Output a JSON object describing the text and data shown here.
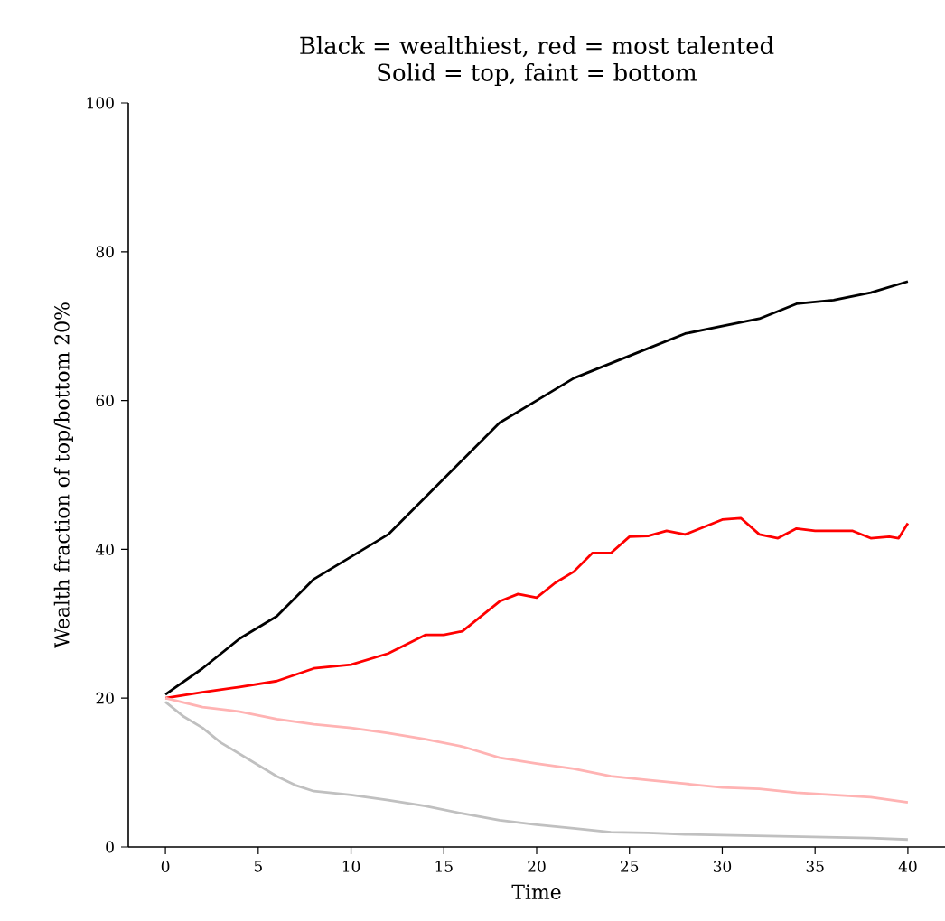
{
  "chart_data": {
    "type": "line",
    "title": "Black = wealthiest, red = most talented\nSolid = top, faint = bottom",
    "xlabel": "Time",
    "ylabel": "Wealth fraction of top/bottom 20%",
    "xlim": [
      -2,
      42
    ],
    "ylim": [
      0,
      100
    ],
    "xticks": [
      0,
      5,
      10,
      15,
      20,
      25,
      30,
      35,
      40
    ],
    "yticks": [
      0,
      20,
      40,
      60,
      80,
      100
    ],
    "grid": false,
    "marker": "none",
    "line_style": "solid",
    "series": [
      {
        "color": "#000000",
        "x": [
          0,
          2,
          4,
          6,
          8,
          10,
          12,
          14,
          16,
          18,
          20,
          22,
          24,
          26,
          28,
          30,
          32,
          34,
          36,
          38,
          40
        ],
        "values": [
          20.5,
          24,
          28,
          31,
          36,
          39,
          42,
          47,
          52,
          57,
          60,
          63,
          65,
          67,
          69,
          70,
          71,
          73,
          73.5,
          74.5,
          76
        ]
      },
      {
        "color": "#ff0000",
        "x": [
          0,
          2,
          4,
          6,
          8,
          10,
          12,
          14,
          15,
          16,
          17,
          18,
          19,
          20,
          21,
          22,
          23,
          24,
          25,
          26,
          27,
          28,
          29,
          30,
          31,
          32,
          33,
          34,
          35,
          36,
          37,
          38,
          39,
          39.5,
          40
        ],
        "values": [
          20,
          20.8,
          21.5,
          22.3,
          24,
          24.5,
          26,
          28.5,
          28.5,
          29,
          31,
          33,
          34,
          33.5,
          35.5,
          37,
          39.5,
          39.5,
          41.7,
          41.8,
          42.5,
          42,
          43,
          44,
          44.2,
          42,
          41.5,
          42.8,
          42.5,
          42.5,
          42.5,
          41.5,
          41.7,
          41.5,
          43.5
        ]
      },
      {
        "color": "#ffb3b3",
        "x": [
          0,
          2,
          4,
          6,
          8,
          10,
          12,
          14,
          16,
          18,
          20,
          22,
          24,
          26,
          28,
          30,
          32,
          34,
          36,
          38,
          40
        ],
        "values": [
          20,
          18.8,
          18.2,
          17.2,
          16.5,
          16,
          15.3,
          14.5,
          13.5,
          12,
          11.2,
          10.5,
          9.5,
          9,
          8.5,
          8,
          7.8,
          7.3,
          7,
          6.7,
          6
        ]
      },
      {
        "color": "#c0c0c0",
        "x": [
          0,
          1,
          2,
          3,
          4,
          5,
          6,
          7,
          8,
          10,
          12,
          14,
          16,
          18,
          20,
          22,
          24,
          26,
          28,
          30,
          34,
          38,
          40
        ],
        "values": [
          19.5,
          17.5,
          16,
          14,
          12.5,
          11,
          9.5,
          8.3,
          7.5,
          7,
          6.3,
          5.5,
          4.5,
          3.6,
          3,
          2.5,
          2,
          1.9,
          1.7,
          1.6,
          1.4,
          1.2,
          1
        ]
      }
    ]
  }
}
